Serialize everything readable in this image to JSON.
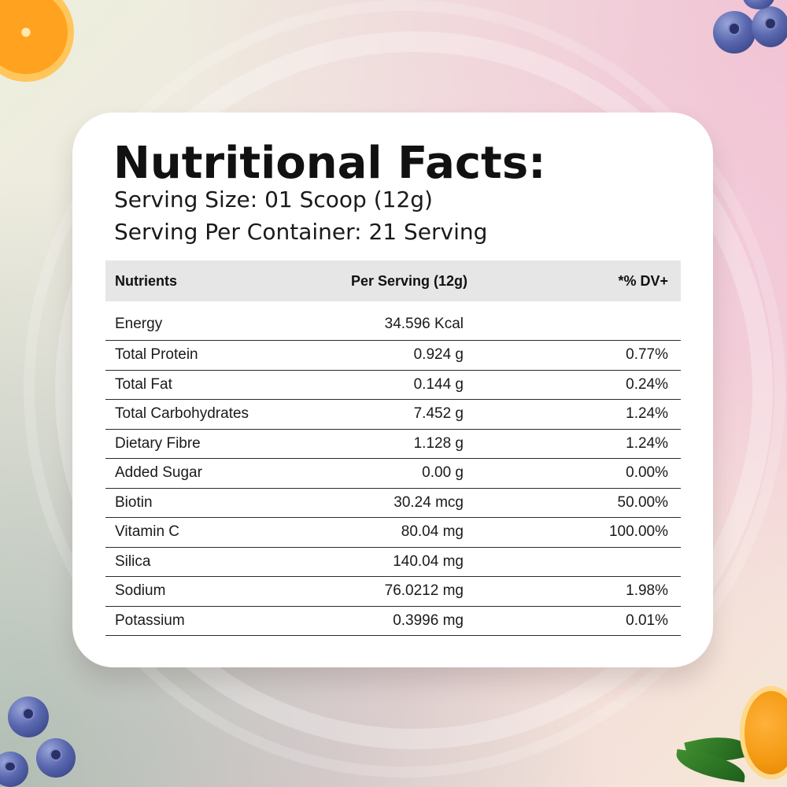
{
  "title": "Nutritional Facts:",
  "serving_size": "Serving Size: 01 Scoop (12g)",
  "serving_per_container": "Serving Per Container: 21 Serving",
  "table": {
    "headers": {
      "nutrient": "Nutrients",
      "per_serving": "Per Serving  (12g)",
      "dv": "*% DV+"
    },
    "rows": [
      {
        "nutrient": "Energy",
        "per_serving": "34.596 Kcal",
        "dv": ""
      },
      {
        "nutrient": "Total Protein",
        "per_serving": "0.924 g",
        "dv": "0.77%"
      },
      {
        "nutrient": "Total Fat",
        "per_serving": "0.144 g",
        "dv": "0.24%"
      },
      {
        "nutrient": "Total Carbohydrates",
        "per_serving": "7.452 g",
        "dv": "1.24%"
      },
      {
        "nutrient": "Dietary Fibre",
        "per_serving": "1.128 g",
        "dv": "1.24%"
      },
      {
        "nutrient": "Added Sugar",
        "per_serving": "0.00 g",
        "dv": "0.00%"
      },
      {
        "nutrient": "Biotin",
        "per_serving": "30.24 mcg",
        "dv": "50.00%"
      },
      {
        "nutrient": "Vitamin C",
        "per_serving": "80.04 mg",
        "dv": "100.00%"
      },
      {
        "nutrient": "Silica",
        "per_serving": "140.04 mg",
        "dv": ""
      },
      {
        "nutrient": "Sodium",
        "per_serving": "76.0212 mg",
        "dv": "1.98%"
      },
      {
        "nutrient": "Potassium",
        "per_serving": "0.3996 mg",
        "dv": "0.01%"
      }
    ]
  },
  "decorations": {
    "top_left": "orange-slice-icon",
    "top_right": "blueberries-icon",
    "bottom_left": "blueberries-icon",
    "bottom_right": "orange-with-leaves-icon"
  }
}
